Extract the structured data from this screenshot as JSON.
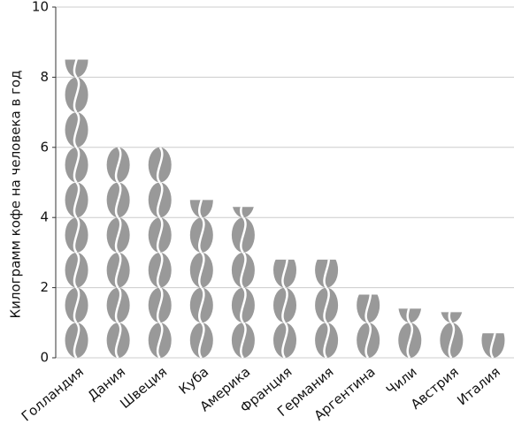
{
  "chart_data": {
    "type": "pictogram",
    "ylabel": "Килограмм кофе на человека в год",
    "categories": [
      "Голландия",
      "Дания",
      "Швеция",
      "Куба",
      "Америка",
      "Франция",
      "Германия",
      "Аргентина",
      "Чили",
      "Австрия",
      "Италия"
    ],
    "values": [
      8.5,
      6,
      6,
      4.5,
      4.3,
      2.8,
      2.8,
      1.8,
      1.4,
      1.3,
      0.7
    ],
    "color": "#999999",
    "ylim": [
      0,
      10
    ],
    "yticks": [
      0,
      2,
      4,
      6,
      8,
      10
    ],
    "grid": true
  }
}
